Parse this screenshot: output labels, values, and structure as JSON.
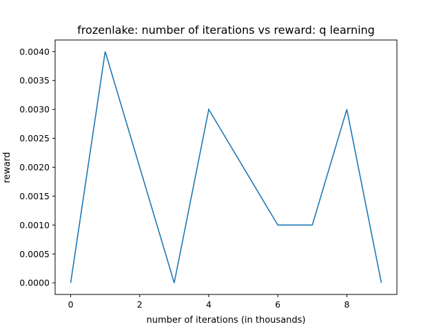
{
  "chart_data": {
    "type": "line",
    "title": "frozenlake: number of iterations vs reward: q learning",
    "xlabel": "number of iterations (in thousands)",
    "ylabel": "reward",
    "x": [
      0,
      1,
      2,
      3,
      4,
      5,
      6,
      7,
      8,
      9
    ],
    "series": [
      {
        "values": [
          0.0,
          0.004,
          0.002,
          0.0,
          0.003,
          0.002,
          0.001,
          0.001,
          0.003,
          0.0
        ]
      }
    ],
    "xlim": [
      -0.45,
      9.45
    ],
    "ylim": [
      -0.0002,
      0.0042
    ],
    "xticks": [
      0,
      2,
      4,
      6,
      8
    ],
    "xtick_labels": [
      "0",
      "2",
      "4",
      "6",
      "8"
    ],
    "yticks": [
      0,
      0.0005,
      0.001,
      0.0015,
      0.002,
      0.0025,
      0.003,
      0.0035,
      0.004
    ],
    "ytick_labels": [
      "0.0000",
      "0.0005",
      "0.0010",
      "0.0015",
      "0.0020",
      "0.0025",
      "0.0030",
      "0.0035",
      "0.0040"
    ],
    "grid": false,
    "line_color": "#1f77b4"
  }
}
